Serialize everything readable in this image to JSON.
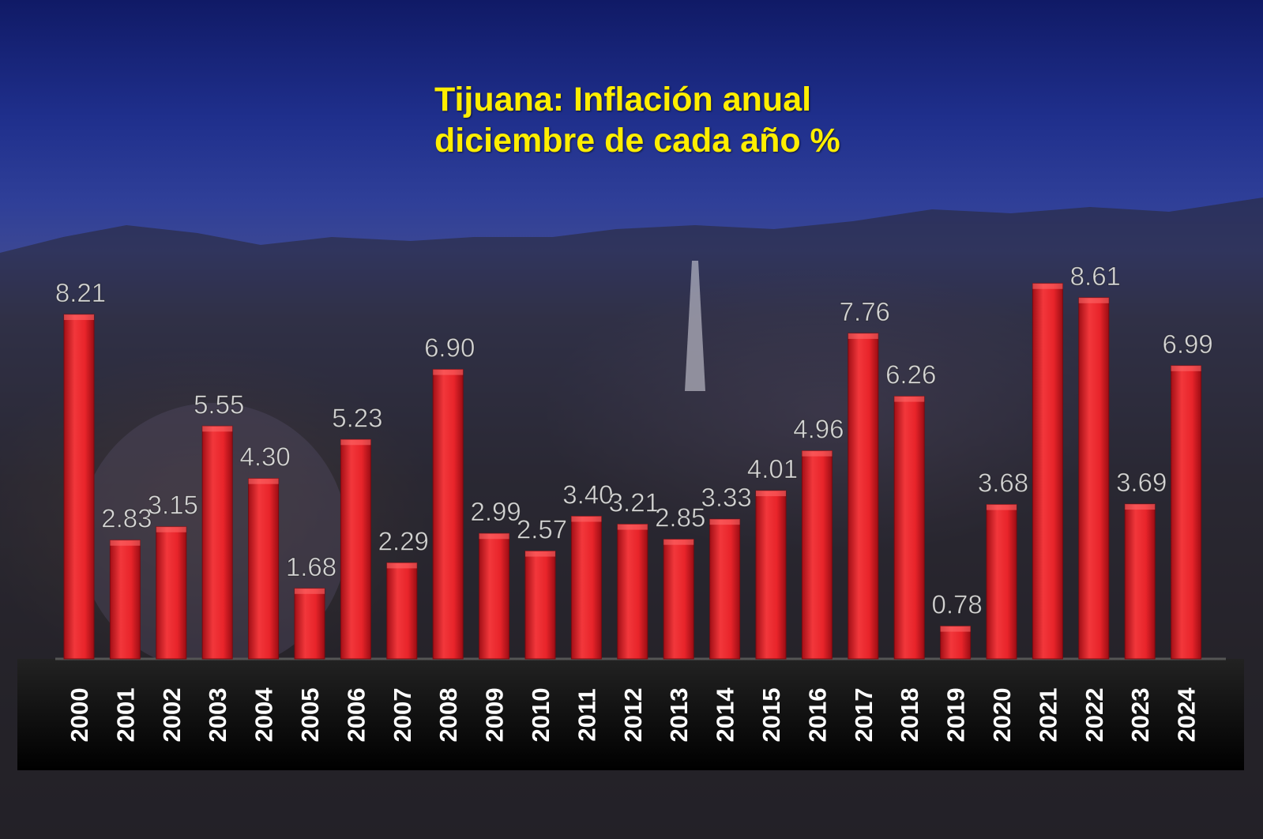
{
  "chart_data": {
    "type": "bar",
    "title_line1": "Tijuana: Inflación anual",
    "title_line2": "diciembre de cada año %",
    "categories": [
      "2000",
      "2001",
      "2002",
      "2003",
      "2004",
      "2005",
      "2006",
      "2007",
      "2008",
      "2009",
      "2010",
      "2011",
      "2012",
      "2013",
      "2014",
      "2015",
      "2016",
      "2017",
      "2018",
      "2019",
      "2020",
      "2021",
      "2022",
      "2023",
      "2024"
    ],
    "values": [
      8.21,
      2.83,
      3.15,
      5.55,
      4.3,
      1.68,
      5.23,
      2.29,
      6.9,
      2.99,
      2.57,
      3.4,
      3.21,
      2.85,
      3.33,
      4.01,
      4.96,
      7.76,
      6.26,
      0.78,
      3.68,
      null,
      8.61,
      3.69,
      6.99
    ],
    "labels": [
      "8.21",
      "2.83",
      "3.15",
      "5.55",
      "4.30",
      "1.68",
      "5.23",
      "2.29",
      "6.90",
      "2.99",
      "2.57",
      "3.40",
      "3.21",
      "2.85",
      "3.33",
      "4.01",
      "4.96",
      "7.76",
      "6.26",
      "0.78",
      "3.68",
      "",
      "8.61",
      "3.69",
      "6.99"
    ],
    "bar_color": "#e8242a",
    "label_color": "#e6e6e6",
    "title_color": "#ffee00",
    "ylim": [
      0,
      10
    ],
    "grid": false,
    "legend": "none"
  }
}
